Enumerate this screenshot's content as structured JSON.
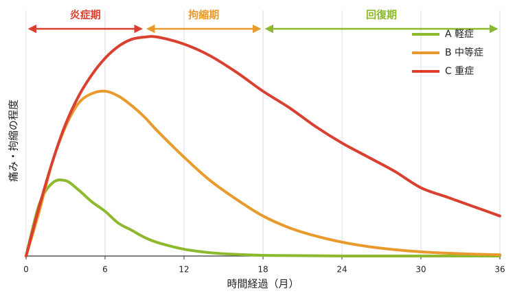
{
  "chart_data": {
    "type": "line",
    "x_label": "時間経過（月）",
    "y_label": "痛み・拘縮の程度",
    "x": [
      0,
      1,
      2,
      3,
      4,
      5,
      6,
      7,
      8,
      9,
      10,
      12,
      14,
      16,
      18,
      20,
      22,
      24,
      26,
      28,
      30,
      32,
      34,
      36
    ],
    "series": [
      {
        "name": "A 軽症",
        "color": "#8db92e",
        "values": [
          0,
          22,
          31,
          32,
          28,
          23,
          19,
          14,
          11,
          7.9,
          5.7,
          2.9,
          1.4,
          0.7,
          0.3,
          0.2,
          0.1,
          0,
          0,
          0,
          0,
          0,
          0,
          0
        ]
      },
      {
        "name": "B 中等症",
        "color": "#e89a2c",
        "values": [
          0,
          19,
          40,
          55,
          65,
          69,
          70,
          68,
          64,
          59,
          53,
          42,
          32,
          24,
          17,
          12,
          8.5,
          5.9,
          4,
          2.7,
          1.8,
          1.2,
          0.8,
          0.5
        ]
      },
      {
        "name": "C 重症",
        "color": "#d9402f",
        "values": [
          0,
          21,
          40,
          56,
          68,
          77,
          84,
          89,
          92,
          93,
          93,
          90,
          85,
          78,
          70,
          63,
          55,
          48,
          42,
          36,
          29,
          25,
          21,
          17
        ]
      }
    ],
    "phases": [
      {
        "label": "炎症期",
        "start": 0,
        "end": 9,
        "color": "#d9402f"
      },
      {
        "label": "拘縮期",
        "start": 9,
        "end": 18,
        "color": "#e89a2c"
      },
      {
        "label": "回復期",
        "start": 18,
        "end": 36,
        "color": "#8db92e"
      }
    ],
    "xlim": [
      0,
      36
    ],
    "xticks": [
      0,
      6,
      12,
      18,
      24,
      30,
      36
    ],
    "ylim": [
      0,
      100
    ],
    "grid": true,
    "legend": "top-right"
  }
}
